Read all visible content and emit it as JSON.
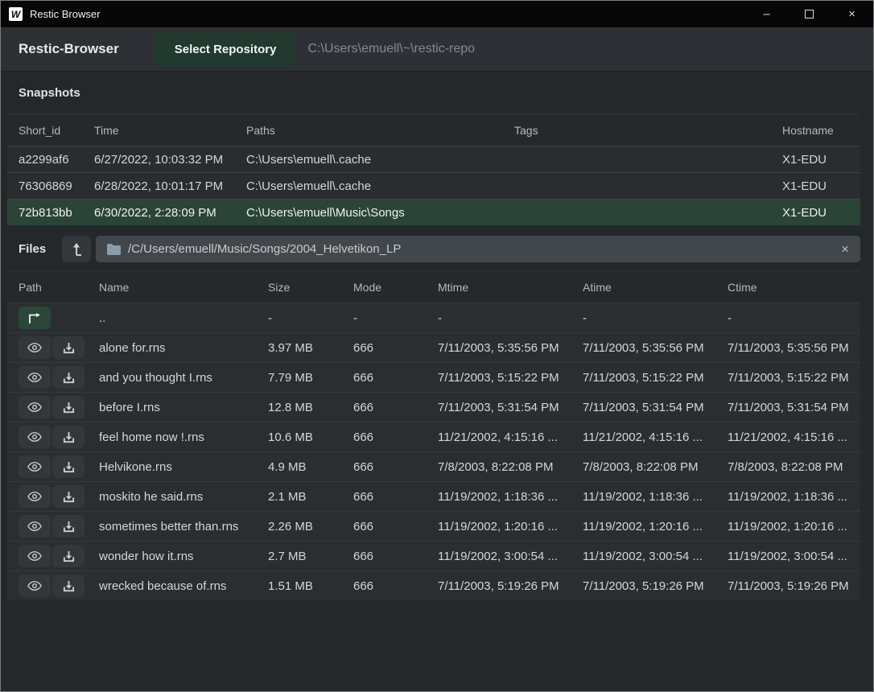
{
  "window": {
    "title": "Restic Browser",
    "logo_letter": "W",
    "controls": {
      "minimize_glyph": "–",
      "maximize_icon": "square-outline",
      "close_glyph": "×"
    }
  },
  "toolbar": {
    "app_name": "Restic-Browser",
    "select_repository_label": "Select Repository",
    "repository_path": "C:\\Users\\emuell\\~\\restic-repo"
  },
  "snapshots": {
    "title": "Snapshots",
    "columns": [
      "Short_id",
      "Time",
      "Paths",
      "Tags",
      "Hostname"
    ],
    "rows": [
      {
        "short_id": "a2299af6",
        "time": "6/27/2022, 10:03:32 PM",
        "paths": "C:\\Users\\emuell\\.cache",
        "tags": "",
        "hostname": "X1-EDU",
        "selected": false
      },
      {
        "short_id": "76306869",
        "time": "6/28/2022, 10:01:17 PM",
        "paths": "C:\\Users\\emuell\\.cache",
        "tags": "",
        "hostname": "X1-EDU",
        "selected": false
      },
      {
        "short_id": "72b813bb",
        "time": "6/30/2022, 2:28:09 PM",
        "paths": "C:\\Users\\emuell\\Music\\Songs",
        "tags": "",
        "hostname": "X1-EDU",
        "selected": true
      }
    ]
  },
  "files": {
    "title": "Files",
    "path_bar": {
      "path": "/C/Users/emuell/Music/Songs/2004_Helvetikon_LP",
      "folder_icon": "folder-icon",
      "clear_glyph": "×"
    },
    "root_button_icon": "up-arrow-from-bar-icon",
    "columns": [
      "Path",
      "Name",
      "Size",
      "Mode",
      "Mtime",
      "Atime",
      "Ctime"
    ],
    "rows": [
      {
        "is_parent": true,
        "name": "..",
        "size": "-",
        "mode": "-",
        "mtime": "-",
        "atime": "-",
        "ctime": "-"
      },
      {
        "is_parent": false,
        "name": "alone for.rns",
        "size": "3.97 MB",
        "mode": "666",
        "mtime": "7/11/2003, 5:35:56 PM",
        "atime": "7/11/2003, 5:35:56 PM",
        "ctime": "7/11/2003, 5:35:56 PM"
      },
      {
        "is_parent": false,
        "name": "and you thought I.rns",
        "size": "7.79 MB",
        "mode": "666",
        "mtime": "7/11/2003, 5:15:22 PM",
        "atime": "7/11/2003, 5:15:22 PM",
        "ctime": "7/11/2003, 5:15:22 PM"
      },
      {
        "is_parent": false,
        "name": "before I.rns",
        "size": "12.8 MB",
        "mode": "666",
        "mtime": "7/11/2003, 5:31:54 PM",
        "atime": "7/11/2003, 5:31:54 PM",
        "ctime": "7/11/2003, 5:31:54 PM"
      },
      {
        "is_parent": false,
        "name": "feel home now !.rns",
        "size": "10.6 MB",
        "mode": "666",
        "mtime": "11/21/2002, 4:15:16 ...",
        "atime": "11/21/2002, 4:15:16 ...",
        "ctime": "11/21/2002, 4:15:16 ..."
      },
      {
        "is_parent": false,
        "name": "Helvikone.rns",
        "size": "4.9 MB",
        "mode": "666",
        "mtime": "7/8/2003, 8:22:08 PM",
        "atime": "7/8/2003, 8:22:08 PM",
        "ctime": "7/8/2003, 8:22:08 PM"
      },
      {
        "is_parent": false,
        "name": "moskito he said.rns",
        "size": "2.1 MB",
        "mode": "666",
        "mtime": "11/19/2002, 1:18:36 ...",
        "atime": "11/19/2002, 1:18:36 ...",
        "ctime": "11/19/2002, 1:18:36 ..."
      },
      {
        "is_parent": false,
        "name": "sometimes better than.rns",
        "size": "2.26 MB",
        "mode": "666",
        "mtime": "11/19/2002, 1:20:16 ...",
        "atime": "11/19/2002, 1:20:16 ...",
        "ctime": "11/19/2002, 1:20:16 ..."
      },
      {
        "is_parent": false,
        "name": "wonder how it.rns",
        "size": "2.7 MB",
        "mode": "666",
        "mtime": "11/19/2002, 3:00:54 ...",
        "atime": "11/19/2002, 3:00:54 ...",
        "ctime": "11/19/2002, 3:00:54 ..."
      },
      {
        "is_parent": false,
        "name": "wrecked because of.rns",
        "size": "1.51 MB",
        "mode": "666",
        "mtime": "7/11/2003, 5:19:26 PM",
        "atime": "7/11/2003, 5:19:26 PM",
        "ctime": "7/11/2003, 5:19:26 PM"
      }
    ]
  },
  "colors": {
    "selected_row_green": "#2b4438",
    "button_green": "#21392e",
    "parent_button_green": "#2a4739",
    "titlebar_bg": "#070708",
    "toolbar_bg": "#2d3135",
    "row_bg": "#2b2e30",
    "breadcrumb_bg": "#42474b"
  }
}
